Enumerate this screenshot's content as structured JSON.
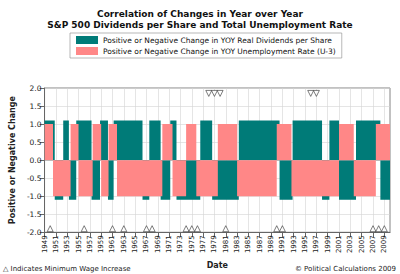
{
  "chart_data": {
    "type": "area",
    "title": "Correlation of Changes in Year over Year\nS&P 500 Dividends per Share and Total Unemployment Rate",
    "x_label": "Date",
    "y_label": "Positive or Negative Change",
    "footnote": "△ Indicates Minimum Wage Increase",
    "credit": "© Political Calculations 2009",
    "legend": "top-left",
    "grid": true,
    "xlim": [
      1949,
      2010
    ],
    "xticks": [
      1949,
      1951,
      1953,
      1955,
      1957,
      1959,
      1961,
      1963,
      1965,
      1967,
      1969,
      1971,
      1973,
      1975,
      1977,
      1979,
      1981,
      1983,
      1985,
      1987,
      1989,
      1991,
      1993,
      1995,
      1997,
      1999,
      2001,
      2003,
      2005,
      2007,
      2009
    ],
    "ylim": [
      -2,
      2
    ],
    "yticks": [
      {
        "value": -2,
        "label": "-2.0"
      },
      -1.5,
      {
        "value": -1,
        "label": "-1.0"
      },
      -0.5,
      {
        "value": 0,
        "label": "0.0"
      },
      0.5,
      {
        "value": 1,
        "label": "1.0"
      },
      1.5,
      {
        "value": 2,
        "label": "2.0"
      }
    ],
    "series": [
      {
        "name": "Positive or Negative Change in YOY Real Dividends per Share",
        "color": "#007b78",
        "type": "area",
        "line_style": "step",
        "x": [
          1949,
          1950.8,
          1952.3,
          1953.3,
          1954.6,
          1957.3,
          1958.8,
          1960.2,
          1961.2,
          1966.3,
          1967.5,
          1969.5,
          1971.2,
          1972.3,
          1976.5,
          1978.6,
          1983.3,
          1990.5,
          1992.8,
          1998,
          1999.3,
          2001,
          2004,
          2008.3,
          2010
        ],
        "values": [
          1.1,
          -1.1,
          1.1,
          -1.1,
          1.1,
          -1.1,
          1.1,
          -1.1,
          1.1,
          -1.1,
          1.1,
          -1.1,
          1.1,
          -1.1,
          1.1,
          -1.1,
          1.1,
          -1.1,
          1.1,
          -1.1,
          1.1,
          -1.1,
          1.1,
          -1.1,
          -1.1
        ]
      },
      {
        "name": "Positive or Negative Change in YOY Unemployment Rate (U-3)",
        "color": "#ff8787",
        "type": "area",
        "line_style": "step",
        "x": [
          1949,
          1950.5,
          1953.6,
          1955,
          1957.5,
          1959,
          1960.3,
          1961.8,
          1969.8,
          1971.6,
          1974,
          1975.8,
          1979.6,
          1983,
          1990,
          1992.6,
          2001,
          2003.6,
          2007.5,
          2010
        ],
        "values": [
          1,
          -1,
          1,
          -1,
          1,
          -1,
          1,
          -1,
          1,
          -1,
          1,
          -1,
          1,
          -1,
          1,
          -1,
          1,
          -1,
          1,
          1
        ]
      },
      {
        "type": "scatter",
        "marker": "triangle-open",
        "color": "#333333",
        "x": [
          1950,
          1956,
          1961,
          1963,
          1967,
          1968,
          1974,
          1975,
          1976,
          1981,
          1990,
          1991,
          2007,
          2008,
          2009
        ],
        "values": [
          -1.9,
          -1.9,
          -1.9,
          -1.9,
          -1.9,
          -1.9,
          -1.9,
          -1.9,
          -1.9,
          -1.9,
          -1.9,
          -1.9,
          -1.9,
          -1.9,
          -1.9
        ]
      },
      {
        "type": "scatter",
        "marker": "triangle-down-open",
        "color": "#333333",
        "x": [
          1978,
          1979,
          1980,
          1996,
          1997
        ],
        "values": [
          1.85,
          1.85,
          1.85,
          1.85,
          1.85
        ]
      }
    ]
  }
}
